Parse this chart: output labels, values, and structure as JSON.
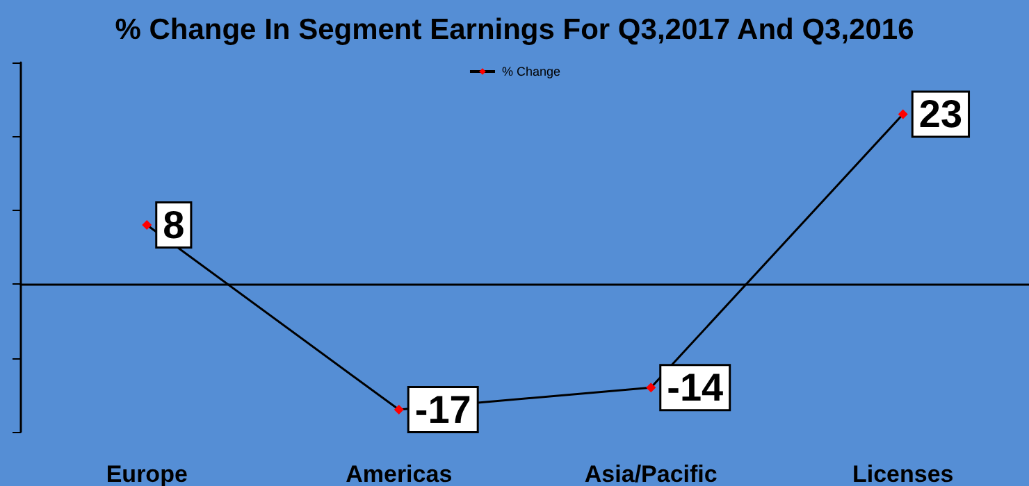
{
  "chart_data": {
    "type": "line",
    "title": "% Change In Segment Earnings For Q3,2017 And Q3,2016",
    "categories": [
      "Europe",
      "Americas",
      "Asia/Pacific",
      "Licenses"
    ],
    "series": [
      {
        "name": "% Change",
        "color": "#ff0000",
        "values": [
          8,
          -17,
          -14,
          23
        ]
      }
    ],
    "ylim": [
      -20,
      30
    ],
    "yticks": [
      {
        "value": -20,
        "label": null
      },
      {
        "value": -10,
        "label": null
      },
      {
        "value": 0,
        "label": null
      },
      {
        "value": 10,
        "label": null
      },
      {
        "value": 20,
        "label": null
      },
      {
        "value": 30,
        "label": null
      }
    ],
    "tick_labels": "x",
    "grid": false,
    "legend": "top",
    "marker": "diamond",
    "data_labels": true
  }
}
